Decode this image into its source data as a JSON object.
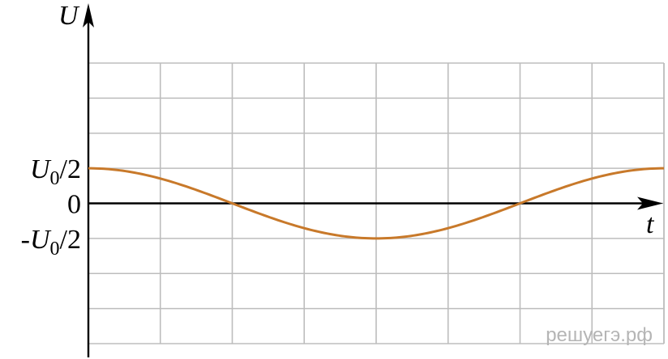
{
  "chart_data": {
    "type": "line",
    "xlabel": "t",
    "ylabel": "U",
    "grid": true,
    "x_range": [
      0,
      8
    ],
    "y_range": [
      -4,
      4
    ],
    "yticks": [
      {
        "value": 1,
        "label": "U0/2"
      },
      {
        "value": 0,
        "label": "0"
      },
      {
        "value": -1,
        "label": "-U0/2"
      }
    ],
    "series": [
      {
        "color": "#c8792a",
        "function": "U = (U0/2)·cos(2πt/T)",
        "x": [
          0,
          1,
          2,
          3,
          4,
          5,
          6,
          7,
          8
        ],
        "y": [
          1,
          0.707,
          0,
          -0.707,
          -1,
          -0.707,
          0,
          0.707,
          1
        ]
      }
    ]
  },
  "watermark": "решуегэ.рф",
  "colors": {
    "curve": "#c8792a",
    "grid": "#bdbdbd",
    "axis": "#000000",
    "watermark": "#b5b5b5"
  }
}
